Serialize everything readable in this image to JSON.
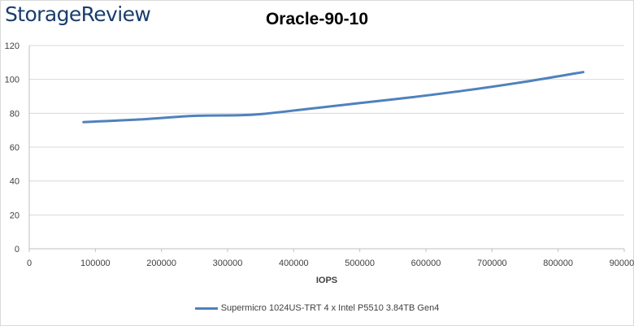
{
  "brand": "StorageReview",
  "chart_data": {
    "type": "line",
    "title": "Oracle-90-10",
    "xlabel": "IOPS",
    "ylabel": "",
    "xlim": [
      0,
      900000
    ],
    "ylim": [
      0,
      120
    ],
    "x_ticks": [
      0,
      100000,
      200000,
      300000,
      400000,
      500000,
      600000,
      700000,
      800000,
      900000
    ],
    "y_ticks": [
      0,
      20,
      40,
      60,
      80,
      100,
      120
    ],
    "grid": "horizontal",
    "legend_position": "bottom",
    "series": [
      {
        "name": "Supermicro 1024US-TRT 4 x Intel P5510 3.84TB Gen4",
        "color": "#4f81bd",
        "x": [
          82000,
          165000,
          250000,
          315000,
          350000,
          420000,
          500000,
          580000,
          660000,
          740000,
          800000,
          825000,
          838000
        ],
        "y": [
          74.8,
          76.3,
          78.5,
          78.8,
          79.5,
          82.5,
          86.0,
          89.5,
          93.5,
          98.0,
          101.8,
          103.5,
          104.3
        ]
      }
    ]
  }
}
